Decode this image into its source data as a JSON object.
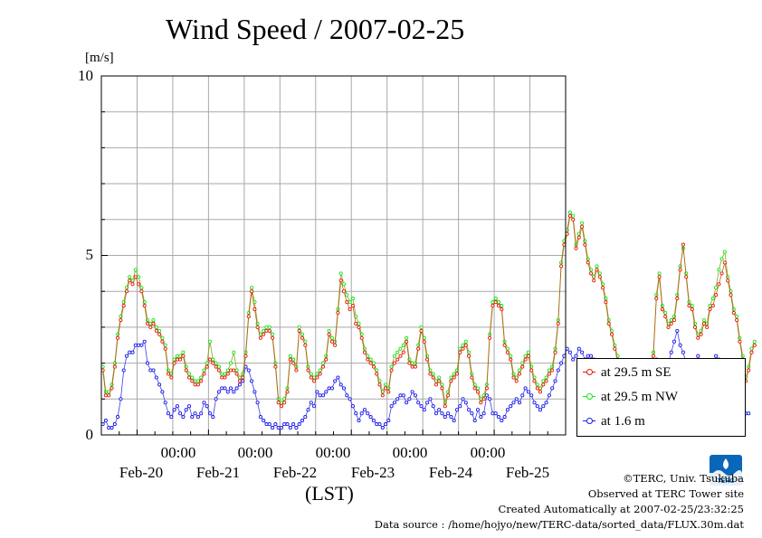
{
  "chart_data": {
    "type": "line",
    "title": "Wind Speed / 2007-02-25",
    "ylabel": "[m/s]",
    "xlabel": "(LST)",
    "ylim": [
      0,
      10
    ],
    "yticks": [
      "0",
      "5",
      "10"
    ],
    "xlim": [
      "2007-02-19 12:00",
      "2007-02-25 24:00"
    ],
    "x_time_labels": [
      "00:00",
      "00:00",
      "00:00",
      "00:00",
      "00:00",
      "00:00"
    ],
    "x_date_labels": [
      "Feb-20",
      "Feb-21",
      "Feb-22",
      "Feb-23",
      "Feb-24",
      "Feb-25"
    ],
    "sample_interval_hours": 1,
    "x_start": "2007-02-19 12:00",
    "grid": true,
    "legend_position": "bottom-right outside",
    "series": [
      {
        "name": "at 29.5 m SE",
        "color": "#e8190b",
        "values": [
          1.8,
          1.1,
          1.1,
          1.3,
          1.9,
          2.7,
          3.2,
          3.6,
          4.0,
          4.3,
          4.2,
          4.4,
          4.2,
          4.0,
          3.6,
          3.1,
          3.0,
          3.1,
          2.9,
          2.8,
          2.6,
          2.4,
          1.7,
          1.6,
          2.0,
          2.1,
          2.1,
          2.2,
          1.8,
          1.6,
          1.5,
          1.4,
          1.4,
          1.5,
          1.7,
          1.9,
          2.1,
          2.0,
          1.9,
          1.8,
          1.6,
          1.6,
          1.7,
          1.8,
          1.8,
          1.7,
          1.5,
          1.6,
          2.2,
          3.3,
          4.0,
          3.5,
          3.0,
          2.7,
          2.8,
          2.9,
          2.9,
          2.7,
          1.9,
          0.9,
          0.8,
          0.9,
          1.2,
          2.1,
          2.0,
          1.8,
          2.9,
          2.7,
          2.5,
          1.8,
          1.6,
          1.5,
          1.6,
          1.7,
          1.9,
          2.1,
          2.8,
          2.6,
          2.5,
          3.4,
          4.3,
          4.0,
          3.7,
          3.5,
          3.6,
          3.1,
          3.0,
          2.7,
          2.3,
          2.1,
          2.0,
          1.9,
          1.7,
          1.4,
          1.1,
          1.3,
          1.2,
          1.8,
          2.0,
          2.1,
          2.2,
          2.3,
          2.6,
          2.0,
          1.9,
          1.9,
          2.4,
          2.9,
          2.6,
          2.1,
          1.7,
          1.6,
          1.4,
          1.5,
          1.3,
          0.8,
          1.1,
          1.5,
          1.6,
          1.7,
          2.3,
          2.4,
          2.5,
          2.2,
          1.6,
          1.3,
          1.2,
          0.9,
          1.0,
          1.3,
          2.7,
          3.6,
          3.7,
          3.6,
          3.5,
          2.5,
          2.3,
          2.1,
          1.6,
          1.5,
          1.7,
          1.9,
          2.1,
          2.2,
          1.8,
          1.5,
          1.3,
          1.2,
          1.4,
          1.5,
          1.7,
          1.8,
          2.3,
          3.1,
          4.7,
          5.3,
          5.6,
          6.1,
          6.0,
          5.2,
          5.5,
          5.8,
          5.3,
          4.8,
          4.5,
          4.3,
          4.6,
          4.4,
          4.1,
          3.7,
          3.1,
          2.8,
          2.4,
          2.1,
          1.8,
          1.5,
          1.3,
          1.4,
          1.7,
          1.8,
          1.9,
          1.6,
          1.5,
          1.6,
          1.8,
          2.2,
          3.8,
          4.4,
          3.5,
          3.3,
          3.0,
          3.1,
          3.2,
          3.8,
          4.6,
          5.3,
          4.4,
          3.6,
          3.5,
          3.0,
          2.7,
          2.8,
          3.1,
          3.0,
          3.5,
          3.6,
          3.9,
          4.2,
          4.5,
          4.8,
          4.3,
          3.9,
          3.4,
          3.2,
          2.6,
          2.1,
          1.5,
          1.8,
          2.3,
          2.5
        ]
      },
      {
        "name": "at 29.5 m NW",
        "color": "#14e814",
        "values": [
          1.9,
          1.2,
          1.2,
          1.4,
          2.0,
          2.8,
          3.3,
          3.7,
          4.1,
          4.4,
          4.3,
          4.6,
          4.4,
          4.1,
          3.7,
          3.2,
          3.1,
          3.2,
          3.0,
          2.9,
          2.7,
          2.5,
          1.8,
          1.7,
          2.1,
          2.2,
          2.2,
          2.3,
          1.9,
          1.7,
          1.6,
          1.5,
          1.5,
          1.6,
          1.8,
          2.0,
          2.6,
          2.1,
          2.0,
          1.9,
          1.7,
          1.7,
          1.8,
          2.0,
          2.3,
          1.8,
          1.6,
          1.7,
          2.3,
          3.4,
          4.1,
          3.7,
          3.1,
          2.8,
          2.9,
          3.0,
          3.0,
          2.8,
          2.0,
          1.0,
          0.9,
          1.0,
          1.3,
          2.2,
          2.1,
          1.9,
          3.0,
          2.8,
          2.6,
          1.9,
          1.7,
          1.6,
          1.7,
          1.8,
          2.0,
          2.2,
          2.9,
          2.7,
          2.6,
          3.5,
          4.5,
          4.2,
          3.9,
          3.7,
          3.8,
          3.3,
          3.1,
          2.8,
          2.4,
          2.2,
          2.1,
          2.0,
          1.8,
          1.5,
          1.2,
          1.4,
          1.3,
          1.9,
          2.2,
          2.3,
          2.4,
          2.5,
          2.7,
          2.1,
          2.0,
          2.0,
          2.5,
          3.0,
          2.7,
          2.2,
          1.8,
          1.7,
          1.5,
          1.6,
          1.4,
          0.9,
          1.2,
          1.6,
          1.7,
          1.8,
          2.4,
          2.5,
          2.6,
          2.3,
          1.7,
          1.4,
          1.3,
          1.0,
          1.1,
          1.4,
          2.8,
          3.7,
          3.8,
          3.7,
          3.6,
          2.6,
          2.4,
          2.2,
          1.7,
          1.6,
          1.8,
          2.0,
          2.2,
          2.3,
          1.9,
          1.6,
          1.4,
          1.3,
          1.5,
          1.6,
          1.8,
          1.9,
          2.4,
          3.2,
          4.8,
          5.4,
          5.7,
          6.2,
          6.1,
          5.3,
          5.6,
          5.9,
          5.4,
          4.9,
          4.6,
          4.4,
          4.7,
          4.5,
          4.2,
          3.8,
          3.2,
          2.9,
          2.5,
          2.2,
          1.9,
          1.6,
          1.4,
          1.5,
          1.8,
          1.9,
          2.0,
          1.7,
          1.6,
          1.7,
          1.9,
          2.3,
          3.9,
          4.5,
          3.6,
          3.4,
          3.1,
          3.2,
          3.3,
          3.9,
          4.7,
          5.2,
          4.5,
          3.7,
          3.6,
          3.1,
          2.8,
          2.9,
          3.2,
          3.1,
          3.6,
          3.8,
          4.1,
          4.6,
          4.9,
          5.1,
          4.4,
          4.0,
          3.5,
          3.3,
          2.7,
          2.2,
          1.6,
          1.9,
          2.4,
          2.6
        ]
      },
      {
        "name": "at 1.6 m",
        "color": "#1a1ae8",
        "values": [
          0.3,
          0.4,
          0.2,
          0.2,
          0.3,
          0.5,
          1.0,
          1.8,
          2.2,
          2.3,
          2.3,
          2.5,
          2.5,
          2.5,
          2.6,
          2.0,
          1.8,
          1.8,
          1.6,
          1.4,
          1.2,
          0.9,
          0.6,
          0.5,
          0.7,
          0.8,
          0.6,
          0.5,
          0.7,
          0.8,
          0.5,
          0.6,
          0.5,
          0.6,
          0.9,
          0.8,
          0.6,
          0.5,
          1.0,
          1.2,
          1.3,
          1.3,
          1.2,
          1.3,
          1.2,
          1.3,
          1.4,
          1.5,
          1.9,
          1.8,
          1.5,
          1.2,
          0.9,
          0.5,
          0.4,
          0.3,
          0.3,
          0.2,
          0.3,
          0.2,
          0.2,
          0.3,
          0.3,
          0.2,
          0.3,
          0.2,
          0.3,
          0.4,
          0.5,
          0.7,
          0.9,
          0.8,
          1.2,
          1.1,
          1.1,
          1.2,
          1.3,
          1.3,
          1.5,
          1.6,
          1.4,
          1.3,
          1.1,
          1.0,
          0.8,
          0.6,
          0.4,
          0.6,
          0.7,
          0.6,
          0.5,
          0.4,
          0.3,
          0.3,
          0.2,
          0.3,
          0.4,
          0.8,
          0.9,
          1.0,
          1.1,
          1.1,
          0.9,
          1.0,
          1.2,
          1.1,
          0.9,
          0.8,
          0.7,
          0.9,
          1.0,
          0.8,
          0.6,
          0.7,
          0.6,
          0.5,
          0.6,
          0.5,
          0.4,
          0.7,
          0.8,
          1.0,
          0.9,
          0.7,
          0.6,
          0.4,
          0.7,
          0.5,
          0.6,
          1.1,
          1.0,
          0.6,
          0.6,
          0.5,
          0.4,
          0.5,
          0.7,
          0.8,
          0.9,
          1.0,
          0.9,
          1.1,
          1.3,
          1.2,
          1.1,
          0.9,
          0.8,
          0.7,
          0.8,
          0.9,
          1.1,
          1.3,
          1.5,
          1.8,
          2.0,
          2.2,
          2.4,
          2.3,
          2.1,
          2.2,
          2.4,
          2.3,
          2.1,
          2.2,
          2.2,
          2.1,
          2.0,
          1.9,
          1.8,
          1.6,
          1.3,
          0.9,
          0.6,
          0.5,
          0.6,
          0.5,
          0.4,
          0.4,
          0.5,
          0.4,
          0.4,
          0.5,
          0.6,
          0.8,
          1.4,
          1.9,
          2.1,
          1.8,
          1.5,
          1.8,
          2.0,
          2.3,
          2.6,
          2.9,
          2.5,
          2.3,
          2.0,
          1.8,
          1.7,
          1.9,
          2.2,
          2.0,
          1.9,
          1.7,
          1.8,
          2.0,
          2.2,
          2.1,
          1.9,
          1.8,
          1.6,
          1.2,
          1.0,
          0.7,
          0.7,
          0.6,
          0.6,
          0.6
        ]
      }
    ]
  },
  "footer": {
    "copyright": "©TERC, Univ. Tsukuba",
    "observed": "Observed at TERC Tower site",
    "created": "Created Automatically at 2007-02-25/23:32:25",
    "source": "Data source : /home/hojyo/new/TERC-data/sorted_data/FLUX.30m.dat"
  },
  "logo": {
    "text": "TERC",
    "color": "#0a66b8"
  }
}
